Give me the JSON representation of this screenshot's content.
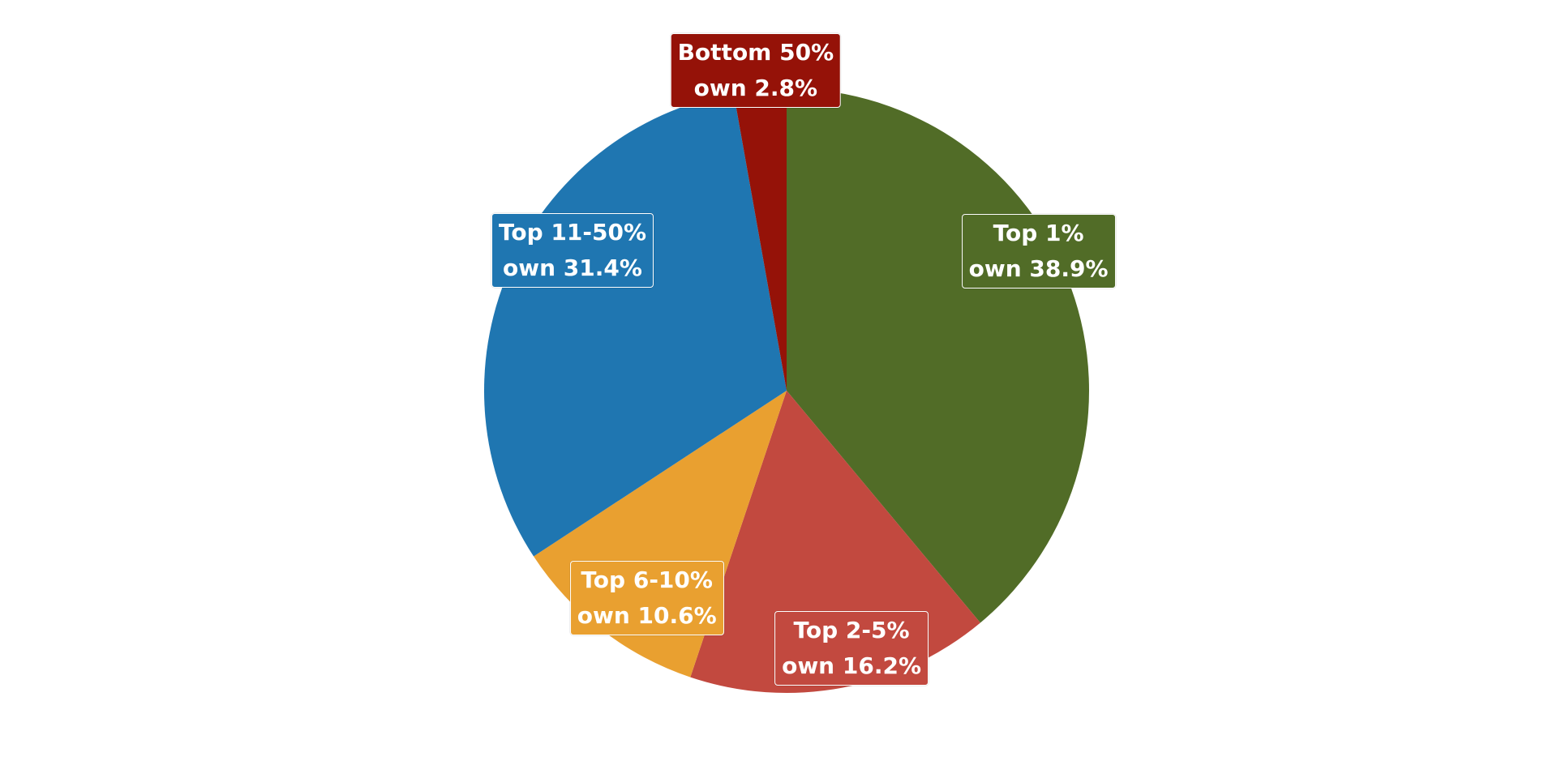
{
  "chart_data": {
    "type": "pie",
    "title": "",
    "slices": [
      {
        "label": "Top 1%",
        "value": 38.9,
        "line1": "Top 1%",
        "line2": "own 38.9%",
        "color": "#516c27"
      },
      {
        "label": "Top 2-5%",
        "value": 16.2,
        "line1": "Top 2-5%",
        "line2": "own 16.2%",
        "color": "#c2493f"
      },
      {
        "label": "Top 6-10%",
        "value": 10.6,
        "line1": "Top 6-10%",
        "line2": "own 10.6%",
        "color": "#e9a030"
      },
      {
        "label": "Top 11-50%",
        "value": 31.4,
        "line1": "Top 11-50%",
        "line2": "own 31.4%",
        "color": "#1f76b1"
      },
      {
        "label": "Bottom 50%",
        "value": 2.8,
        "line1": "Bottom 50%",
        "line2": "own 2.8%",
        "color": "#951208"
      }
    ],
    "start_angle": "12 o'clock",
    "direction": "clockwise",
    "legend": "none"
  }
}
